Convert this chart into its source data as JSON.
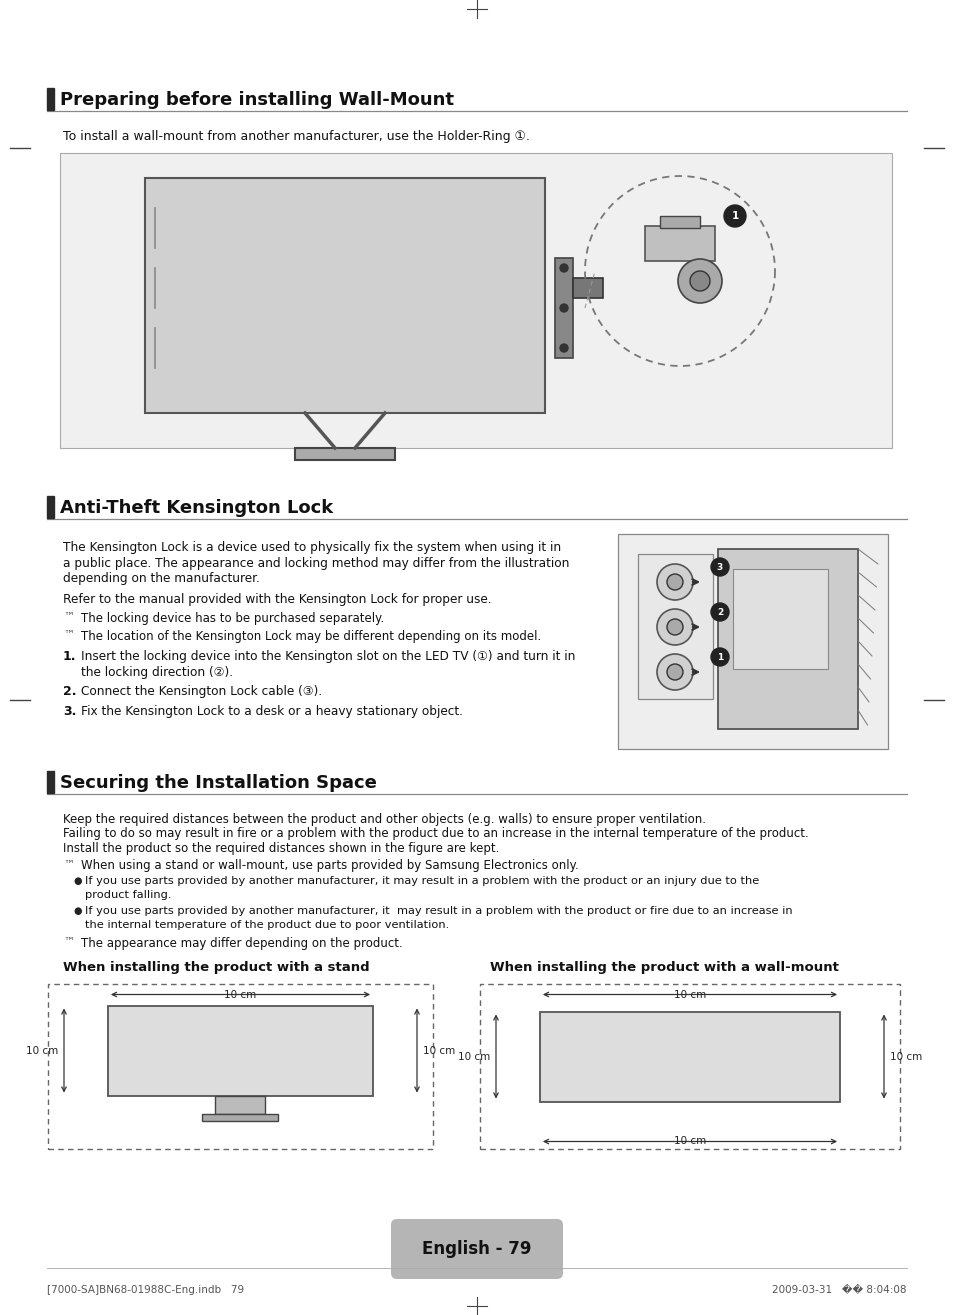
{
  "page_bg": "#ffffff",
  "section_bar_color": "#2a2a2a",
  "section_line_color": "#888888",
  "section1_title": "Preparing before installing Wall-Mount",
  "section1_subtitle": "To install a wall-mount from another manufacturer, use the Holder-Ring ①.",
  "section2_title": "Anti-Theft Kensington Lock",
  "section3_title": "Securing the Installation Space",
  "sec2_para1": "The Kensington Lock is a device used to physically fix the system when using it in\na public place. The appearance and locking method may differ from the illustration\ndepending on the manufacturer.",
  "sec2_para2": "Refer to the manual provided with the Kensington Lock for proper use.",
  "sec2_note1": "The locking device has to be purchased separately.",
  "sec2_note2": "The location of the Kensington Lock may be different depending on its model.",
  "sec2_step1a": "Insert the locking device into the Kensington slot on the LED TV (①) and turn it in",
  "sec2_step1b": "the locking direction (②).",
  "sec2_step2": "Connect the Kensington Lock cable (③).",
  "sec2_step3": "Fix the Kensington Lock to a desk or a heavy stationary object.",
  "sec3_line1": "Keep the required distances between the product and other objects (e.g. walls) to ensure proper ventilation.",
  "sec3_line2": "Failing to do so may result in fire or a problem with the product due to an increase in the internal temperature of the product.",
  "sec3_line3": "Install the product so the required distances shown in the figure are kept.",
  "sec3_note1": "When using a stand or wall-mount, use parts provided by Samsung Electronics only.",
  "sec3_bullet1a": "If you use parts provided by another manufacturer, it may result in a problem with the product or an injury due to the",
  "sec3_bullet1b": "product falling.",
  "sec3_bullet2a": "If you use parts provided by another manufacturer, it  may result in a problem with the product or fire due to an increase in",
  "sec3_bullet2b": "the internal temperature of the product due to poor ventilation.",
  "sec3_note2": "The appearance may differ depending on the product.",
  "stand_title": "When installing the product with a stand",
  "wallmount_title": "When installing the product with a wall-mount",
  "dim_label": "10 cm",
  "footer_text": "English - 79",
  "footer_left": "[7000-SA]BN68-01988C-Eng.indb   79",
  "footer_right": "2009-03-31   �� 8:04:08",
  "note_symbol": "™",
  "crosshair_color": "#444444",
  "margin_line_color": "#555555"
}
